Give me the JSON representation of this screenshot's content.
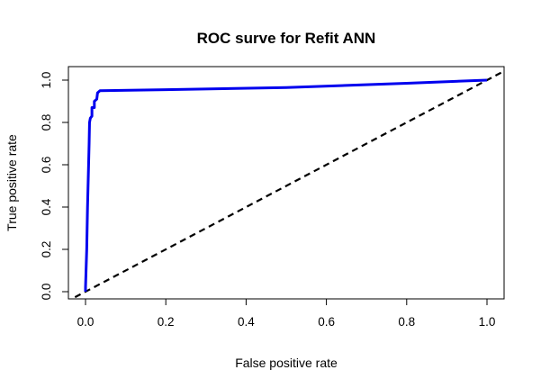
{
  "chart_data": {
    "type": "line",
    "title": "ROC surve for Refit ANN",
    "xlabel": "False positive rate",
    "ylabel": "True positive rate",
    "xlim": [
      0,
      1
    ],
    "ylim": [
      0,
      1
    ],
    "x_ticks": [
      "0.0",
      "0.2",
      "0.4",
      "0.6",
      "0.8",
      "1.0"
    ],
    "y_ticks": [
      "0.0",
      "0.2",
      "0.4",
      "0.6",
      "0.8",
      "1.0"
    ],
    "grid": false,
    "series": [
      {
        "color": "#0000ee",
        "style": "solid",
        "points": [
          [
            0.0,
            0.0
          ],
          [
            0.0,
            0.02
          ],
          [
            0.003,
            0.2
          ],
          [
            0.005,
            0.4
          ],
          [
            0.007,
            0.55
          ],
          [
            0.009,
            0.7
          ],
          [
            0.01,
            0.8
          ],
          [
            0.012,
            0.82
          ],
          [
            0.016,
            0.83
          ],
          [
            0.016,
            0.87
          ],
          [
            0.022,
            0.87
          ],
          [
            0.022,
            0.9
          ],
          [
            0.028,
            0.91
          ],
          [
            0.03,
            0.94
          ],
          [
            0.036,
            0.95
          ],
          [
            0.2,
            0.955
          ],
          [
            0.5,
            0.965
          ],
          [
            0.8,
            0.985
          ],
          [
            1.0,
            1.0
          ]
        ]
      },
      {
        "color": "#000000",
        "style": "dashed",
        "points": [
          [
            -0.05,
            -0.05
          ],
          [
            1.05,
            1.05
          ]
        ]
      }
    ]
  }
}
